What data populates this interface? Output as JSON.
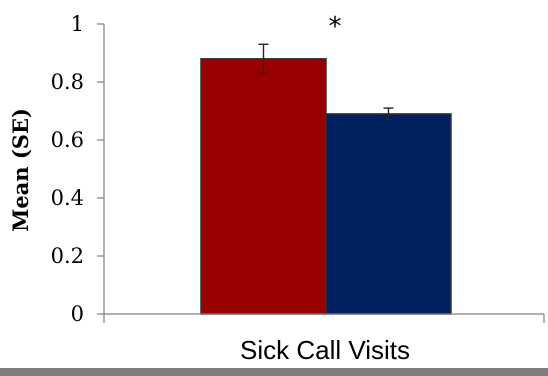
{
  "chart_data": {
    "type": "bar",
    "categories": [
      "Sick Call Visits"
    ],
    "series": [
      {
        "values": [
          0.88
        ],
        "error": [
          0.05
        ],
        "color": "#990000"
      },
      {
        "values": [
          0.69
        ],
        "error": [
          0.02
        ],
        "color": "#002060"
      }
    ],
    "title": "",
    "xlabel": "",
    "ylabel": "Mean (SE)",
    "ylim": [
      0,
      1
    ],
    "yticks": [
      0,
      0.2,
      0.4,
      0.6,
      0.8,
      1
    ],
    "ytick_labels": [
      "0",
      "0.2",
      "0.4",
      "0.6",
      "0.8",
      "1"
    ],
    "annotation": "*",
    "grid": false,
    "legend": "none"
  }
}
